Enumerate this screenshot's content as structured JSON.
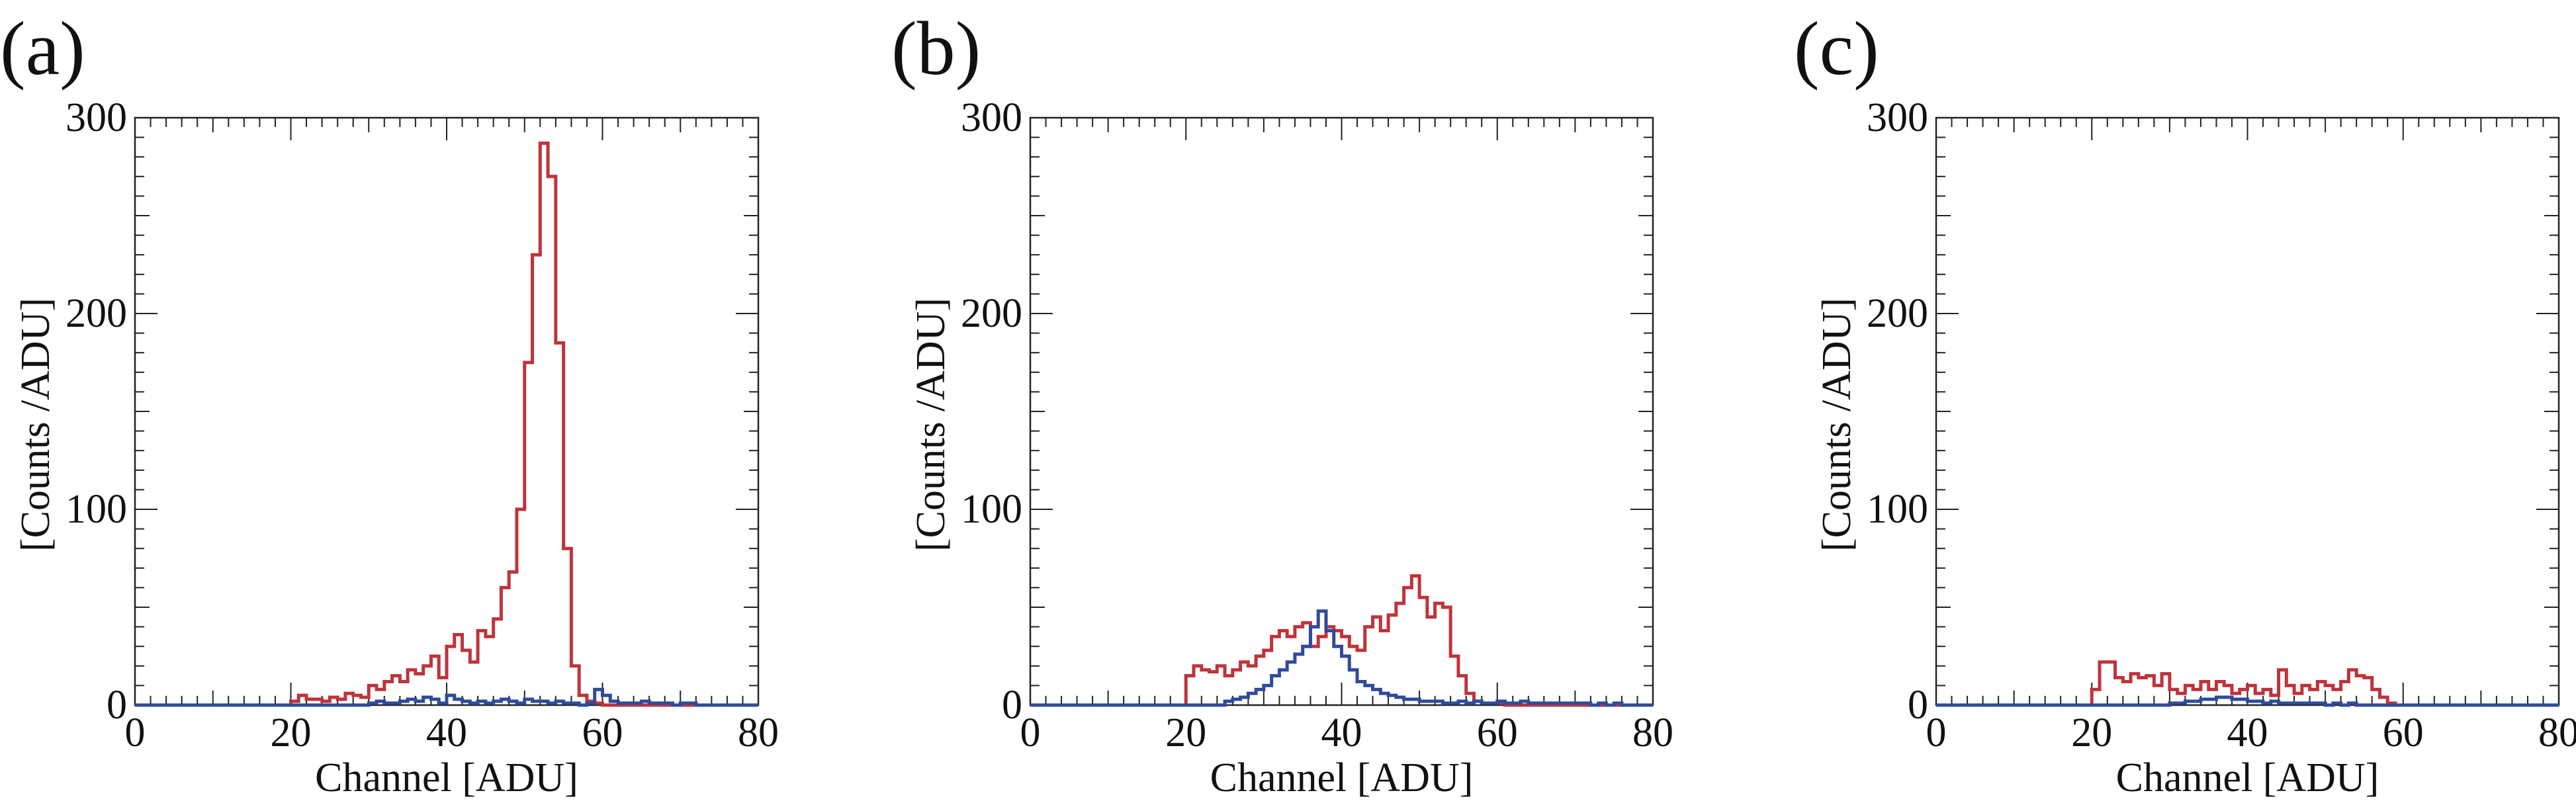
{
  "figure": {
    "panels": [
      {
        "label": "(a)"
      },
      {
        "label": "(b)"
      },
      {
        "label": "(c)"
      }
    ]
  },
  "colors": {
    "red_series": "#c0333a",
    "blue_series": "#2f4b9a",
    "axis": "#222222"
  },
  "chart_data": [
    {
      "type": "step-histogram",
      "panel": "(a)",
      "xlabel": "Channel [ADU]",
      "ylabel": "[Counts /ADU]",
      "xlim": [
        0,
        80
      ],
      "ylim": [
        0,
        300
      ],
      "xticks": [
        0,
        20,
        40,
        60,
        80
      ],
      "yticks": [
        0,
        100,
        200,
        300
      ],
      "bin_width": 1,
      "series": [
        {
          "name": "red",
          "color": "#c0333a",
          "values": [
            0,
            0,
            0,
            0,
            0,
            0,
            0,
            0,
            0,
            0,
            0,
            0,
            0,
            0,
            0,
            0,
            0,
            0,
            0,
            0,
            2,
            5,
            3,
            3,
            2,
            4,
            3,
            6,
            5,
            4,
            10,
            8,
            12,
            15,
            12,
            18,
            16,
            20,
            25,
            14,
            30,
            36,
            28,
            22,
            38,
            35,
            44,
            60,
            68,
            100,
            175,
            230,
            287,
            270,
            185,
            80,
            20,
            5,
            2,
            1,
            0,
            0,
            0,
            0,
            0,
            0,
            0,
            0,
            0,
            0,
            0,
            0,
            0,
            0,
            0,
            0,
            0,
            0,
            0,
            0
          ]
        },
        {
          "name": "blue",
          "color": "#2f4b9a",
          "values": [
            0,
            0,
            0,
            0,
            0,
            0,
            0,
            0,
            0,
            0,
            0,
            0,
            0,
            0,
            0,
            0,
            0,
            0,
            0,
            0,
            0,
            0,
            0,
            0,
            0,
            0,
            0,
            0,
            0,
            0,
            1,
            2,
            1,
            1,
            2,
            3,
            2,
            4,
            3,
            1,
            5,
            3,
            2,
            1,
            2,
            1,
            2,
            3,
            2,
            1,
            3,
            2,
            2,
            1,
            2,
            1,
            1,
            0,
            1,
            8,
            5,
            2,
            1,
            1,
            1,
            2,
            1,
            1,
            1,
            0,
            1,
            1,
            0,
            0,
            0,
            0,
            0,
            0,
            0,
            0
          ]
        }
      ]
    },
    {
      "type": "step-histogram",
      "panel": "(b)",
      "xlabel": "Channel [ADU]",
      "ylabel": "[Counts /ADU]",
      "xlim": [
        0,
        80
      ],
      "ylim": [
        0,
        300
      ],
      "xticks": [
        0,
        20,
        40,
        60,
        80
      ],
      "yticks": [
        0,
        100,
        200,
        300
      ],
      "bin_width": 1,
      "series": [
        {
          "name": "red",
          "color": "#c0333a",
          "values": [
            0,
            0,
            0,
            0,
            0,
            0,
            0,
            0,
            0,
            0,
            0,
            0,
            0,
            0,
            0,
            0,
            0,
            0,
            0,
            0,
            15,
            20,
            18,
            17,
            20,
            15,
            18,
            22,
            20,
            25,
            28,
            35,
            38,
            35,
            40,
            42,
            30,
            35,
            40,
            38,
            35,
            30,
            28,
            40,
            45,
            38,
            46,
            52,
            60,
            66,
            55,
            45,
            52,
            50,
            25,
            15,
            6,
            2,
            1,
            1,
            1,
            0,
            0,
            0,
            0,
            0,
            0,
            0,
            0,
            0,
            0,
            0,
            0,
            0,
            0,
            0,
            0,
            0,
            0,
            0
          ]
        },
        {
          "name": "blue",
          "color": "#2f4b9a",
          "values": [
            0,
            0,
            0,
            0,
            0,
            0,
            0,
            0,
            0,
            0,
            0,
            0,
            0,
            0,
            0,
            0,
            0,
            0,
            0,
            0,
            0,
            0,
            0,
            0,
            0,
            2,
            3,
            4,
            6,
            8,
            10,
            15,
            18,
            22,
            26,
            30,
            40,
            48,
            38,
            30,
            25,
            18,
            12,
            10,
            8,
            6,
            5,
            4,
            3,
            3,
            2,
            2,
            2,
            1,
            1,
            2,
            1,
            2,
            1,
            1,
            2,
            1,
            1,
            2,
            1,
            1,
            1,
            1,
            1,
            1,
            1,
            1,
            0,
            1,
            0,
            1,
            0,
            0,
            0,
            0
          ]
        }
      ]
    },
    {
      "type": "step-histogram",
      "panel": "(c)",
      "xlabel": "Channel [ADU]",
      "ylabel": "[Counts /ADU]",
      "xlim": [
        0,
        80
      ],
      "ylim": [
        0,
        300
      ],
      "xticks": [
        0,
        20,
        40,
        60,
        80
      ],
      "yticks": [
        0,
        100,
        200,
        300
      ],
      "bin_width": 1,
      "series": [
        {
          "name": "red",
          "color": "#c0333a",
          "values": [
            0,
            0,
            0,
            0,
            0,
            0,
            0,
            0,
            0,
            0,
            0,
            0,
            0,
            0,
            0,
            0,
            0,
            0,
            0,
            0,
            8,
            22,
            22,
            14,
            12,
            16,
            14,
            15,
            10,
            16,
            8,
            6,
            10,
            8,
            12,
            8,
            12,
            10,
            6,
            8,
            10,
            6,
            8,
            5,
            18,
            10,
            6,
            10,
            8,
            12,
            10,
            8,
            12,
            18,
            15,
            14,
            8,
            4,
            1,
            0,
            0,
            0,
            0,
            0,
            0,
            0,
            0,
            0,
            0,
            0,
            0,
            0,
            0,
            0,
            0,
            0,
            0,
            0,
            0,
            0
          ]
        },
        {
          "name": "blue",
          "color": "#2f4b9a",
          "values": [
            0,
            0,
            0,
            0,
            0,
            0,
            0,
            0,
            0,
            0,
            0,
            0,
            0,
            0,
            0,
            0,
            0,
            0,
            0,
            0,
            0,
            0,
            0,
            0,
            0,
            0,
            0,
            0,
            0,
            0,
            1,
            1,
            2,
            2,
            3,
            3,
            4,
            4,
            3,
            3,
            2,
            2,
            1,
            2,
            1,
            1,
            1,
            1,
            1,
            1,
            0,
            1,
            0,
            1,
            0,
            0,
            0,
            0,
            0,
            0,
            0,
            0,
            0,
            0,
            0,
            0,
            0,
            0,
            0,
            0,
            0,
            0,
            0,
            0,
            0,
            0,
            0,
            0,
            0,
            0
          ]
        }
      ]
    }
  ]
}
